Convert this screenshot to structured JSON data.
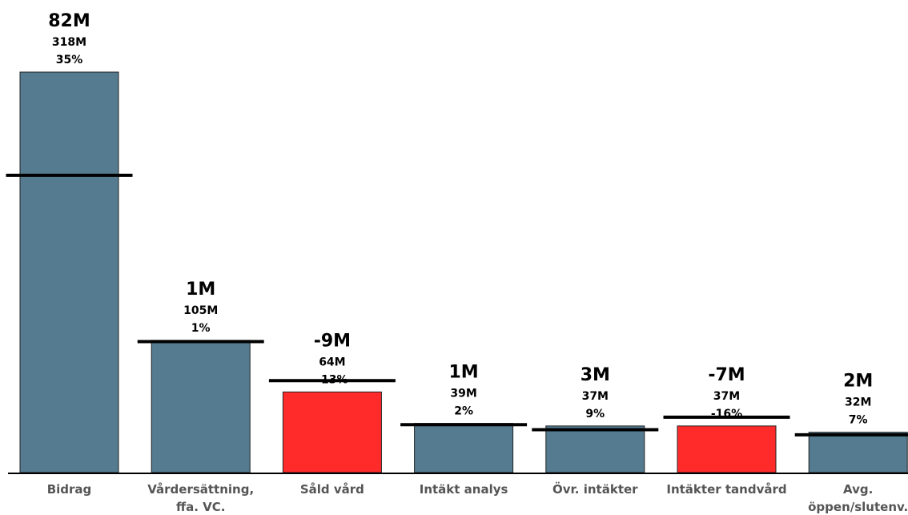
{
  "chart_data": {
    "type": "bar",
    "categories": [
      [
        "Bidrag"
      ],
      [
        "Vårdersättning,",
        "ffa. VC."
      ],
      [
        "Såld vård"
      ],
      [
        "Intäkt analys"
      ],
      [
        "Övr. intäkter"
      ],
      [
        "Intäkter tandvård"
      ],
      [
        "Avg.",
        "öppen/slutenv."
      ]
    ],
    "values": [
      318,
      105,
      64,
      39,
      37,
      37,
      32
    ],
    "reference_values": [
      236,
      104,
      73,
      38,
      34,
      44,
      30
    ],
    "diff_labels": [
      "82M",
      "1M",
      "-9M",
      "1M",
      "3M",
      "-7M",
      "2M"
    ],
    "value_labels": [
      "318M",
      "105M",
      "64M",
      "39M",
      "37M",
      "37M",
      "32M"
    ],
    "pct_labels": [
      "35%",
      "1%",
      "-13%",
      "2%",
      "9%",
      "-16%",
      "7%"
    ],
    "bar_colors": [
      "#547b90",
      "#547b90",
      "#ff2a2a",
      "#547b90",
      "#547b90",
      "#ff2a2a",
      "#547b90"
    ],
    "unit": "M",
    "ylim": [
      0,
      318
    ],
    "grid": false
  }
}
